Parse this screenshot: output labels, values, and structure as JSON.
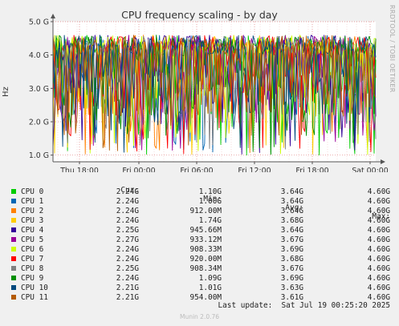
{
  "chart_data": {
    "type": "line",
    "title": "CPU frequency scaling - by day",
    "ylabel": "Hz",
    "ylim": [
      0.8,
      5.0
    ],
    "y_ticks": [
      "1.0 G",
      "2.0 G",
      "3.0 G",
      "4.0 G",
      "5.0 G"
    ],
    "y_tick_values": [
      1.0,
      2.0,
      3.0,
      4.0,
      5.0
    ],
    "x_ticks": [
      "Thu 18:00",
      "Fri 00:00",
      "Fri 06:00",
      "Fri 12:00",
      "Fri 18:00",
      "Sat 00:00"
    ],
    "grid": true,
    "series": [
      {
        "name": "CPU 0",
        "color": "#00cc00",
        "cur": "2.24G",
        "min": "1.10G",
        "avg": "3.64G",
        "max": "4.60G"
      },
      {
        "name": "CPU 1",
        "color": "#0066b3",
        "cur": "2.24G",
        "min": "1.00G",
        "avg": "3.64G",
        "max": "4.60G"
      },
      {
        "name": "CPU 2",
        "color": "#ff8000",
        "cur": "2.24G",
        "min": "912.00M",
        "avg": "3.64G",
        "max": "4.60G"
      },
      {
        "name": "CPU 3",
        "color": "#ffcc00",
        "cur": "2.24G",
        "min": "1.74G",
        "avg": "3.68G",
        "max": "4.60G"
      },
      {
        "name": "CPU 4",
        "color": "#330099",
        "cur": "2.25G",
        "min": "945.66M",
        "avg": "3.64G",
        "max": "4.60G"
      },
      {
        "name": "CPU 5",
        "color": "#990099",
        "cur": "2.27G",
        "min": "933.12M",
        "avg": "3.67G",
        "max": "4.60G"
      },
      {
        "name": "CPU 6",
        "color": "#ccff00",
        "cur": "2.24G",
        "min": "908.33M",
        "avg": "3.69G",
        "max": "4.60G"
      },
      {
        "name": "CPU 7",
        "color": "#ff0000",
        "cur": "2.24G",
        "min": "920.00M",
        "avg": "3.68G",
        "max": "4.60G"
      },
      {
        "name": "CPU 8",
        "color": "#808080",
        "cur": "2.25G",
        "min": "908.34M",
        "avg": "3.67G",
        "max": "4.60G"
      },
      {
        "name": "CPU 9",
        "color": "#008f00",
        "cur": "2.24G",
        "min": "1.09G",
        "avg": "3.69G",
        "max": "4.60G"
      },
      {
        "name": "CPU 10",
        "color": "#00487d",
        "cur": "2.21G",
        "min": "1.01G",
        "avg": "3.63G",
        "max": "4.60G"
      },
      {
        "name": "CPU 11",
        "color": "#b35a00",
        "cur": "2.21G",
        "min": "954.00M",
        "avg": "3.61G",
        "max": "4.60G"
      }
    ]
  },
  "legend_headers": {
    "cur": "Cur:",
    "min": "Min:",
    "avg": "Avg:",
    "max": "Max:"
  },
  "last_update": "Last update:  Sat Jul 19 00:25:20 2025",
  "side_text": "RRDTOOL / TOBI OETIKER",
  "footer": "Munin 2.0.76"
}
